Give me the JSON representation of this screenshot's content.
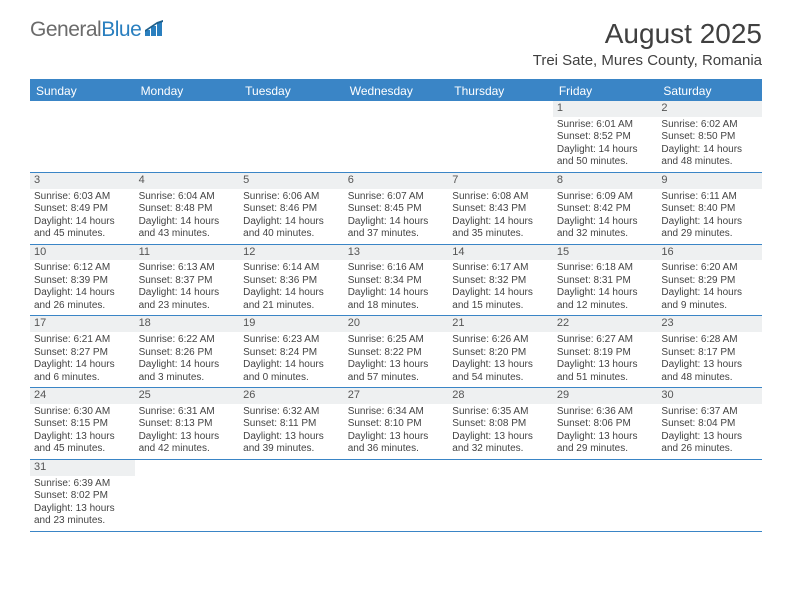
{
  "logo": {
    "text1": "General",
    "text2": "Blue"
  },
  "title": "August 2025",
  "location": "Trei Sate, Mures County, Romania",
  "colors": {
    "header_bg": "#3a85c6",
    "daynum_bg": "#eef0f1",
    "text": "#444444"
  },
  "day_headers": [
    "Sunday",
    "Monday",
    "Tuesday",
    "Wednesday",
    "Thursday",
    "Friday",
    "Saturday"
  ],
  "weeks": [
    [
      {
        "n": "",
        "sr": "",
        "ss": "",
        "dl1": "",
        "dl2": ""
      },
      {
        "n": "",
        "sr": "",
        "ss": "",
        "dl1": "",
        "dl2": ""
      },
      {
        "n": "",
        "sr": "",
        "ss": "",
        "dl1": "",
        "dl2": ""
      },
      {
        "n": "",
        "sr": "",
        "ss": "",
        "dl1": "",
        "dl2": ""
      },
      {
        "n": "",
        "sr": "",
        "ss": "",
        "dl1": "",
        "dl2": ""
      },
      {
        "n": "1",
        "sr": "Sunrise: 6:01 AM",
        "ss": "Sunset: 8:52 PM",
        "dl1": "Daylight: 14 hours",
        "dl2": "and 50 minutes."
      },
      {
        "n": "2",
        "sr": "Sunrise: 6:02 AM",
        "ss": "Sunset: 8:50 PM",
        "dl1": "Daylight: 14 hours",
        "dl2": "and 48 minutes."
      }
    ],
    [
      {
        "n": "3",
        "sr": "Sunrise: 6:03 AM",
        "ss": "Sunset: 8:49 PM",
        "dl1": "Daylight: 14 hours",
        "dl2": "and 45 minutes."
      },
      {
        "n": "4",
        "sr": "Sunrise: 6:04 AM",
        "ss": "Sunset: 8:48 PM",
        "dl1": "Daylight: 14 hours",
        "dl2": "and 43 minutes."
      },
      {
        "n": "5",
        "sr": "Sunrise: 6:06 AM",
        "ss": "Sunset: 8:46 PM",
        "dl1": "Daylight: 14 hours",
        "dl2": "and 40 minutes."
      },
      {
        "n": "6",
        "sr": "Sunrise: 6:07 AM",
        "ss": "Sunset: 8:45 PM",
        "dl1": "Daylight: 14 hours",
        "dl2": "and 37 minutes."
      },
      {
        "n": "7",
        "sr": "Sunrise: 6:08 AM",
        "ss": "Sunset: 8:43 PM",
        "dl1": "Daylight: 14 hours",
        "dl2": "and 35 minutes."
      },
      {
        "n": "8",
        "sr": "Sunrise: 6:09 AM",
        "ss": "Sunset: 8:42 PM",
        "dl1": "Daylight: 14 hours",
        "dl2": "and 32 minutes."
      },
      {
        "n": "9",
        "sr": "Sunrise: 6:11 AM",
        "ss": "Sunset: 8:40 PM",
        "dl1": "Daylight: 14 hours",
        "dl2": "and 29 minutes."
      }
    ],
    [
      {
        "n": "10",
        "sr": "Sunrise: 6:12 AM",
        "ss": "Sunset: 8:39 PM",
        "dl1": "Daylight: 14 hours",
        "dl2": "and 26 minutes."
      },
      {
        "n": "11",
        "sr": "Sunrise: 6:13 AM",
        "ss": "Sunset: 8:37 PM",
        "dl1": "Daylight: 14 hours",
        "dl2": "and 23 minutes."
      },
      {
        "n": "12",
        "sr": "Sunrise: 6:14 AM",
        "ss": "Sunset: 8:36 PM",
        "dl1": "Daylight: 14 hours",
        "dl2": "and 21 minutes."
      },
      {
        "n": "13",
        "sr": "Sunrise: 6:16 AM",
        "ss": "Sunset: 8:34 PM",
        "dl1": "Daylight: 14 hours",
        "dl2": "and 18 minutes."
      },
      {
        "n": "14",
        "sr": "Sunrise: 6:17 AM",
        "ss": "Sunset: 8:32 PM",
        "dl1": "Daylight: 14 hours",
        "dl2": "and 15 minutes."
      },
      {
        "n": "15",
        "sr": "Sunrise: 6:18 AM",
        "ss": "Sunset: 8:31 PM",
        "dl1": "Daylight: 14 hours",
        "dl2": "and 12 minutes."
      },
      {
        "n": "16",
        "sr": "Sunrise: 6:20 AM",
        "ss": "Sunset: 8:29 PM",
        "dl1": "Daylight: 14 hours",
        "dl2": "and 9 minutes."
      }
    ],
    [
      {
        "n": "17",
        "sr": "Sunrise: 6:21 AM",
        "ss": "Sunset: 8:27 PM",
        "dl1": "Daylight: 14 hours",
        "dl2": "and 6 minutes."
      },
      {
        "n": "18",
        "sr": "Sunrise: 6:22 AM",
        "ss": "Sunset: 8:26 PM",
        "dl1": "Daylight: 14 hours",
        "dl2": "and 3 minutes."
      },
      {
        "n": "19",
        "sr": "Sunrise: 6:23 AM",
        "ss": "Sunset: 8:24 PM",
        "dl1": "Daylight: 14 hours",
        "dl2": "and 0 minutes."
      },
      {
        "n": "20",
        "sr": "Sunrise: 6:25 AM",
        "ss": "Sunset: 8:22 PM",
        "dl1": "Daylight: 13 hours",
        "dl2": "and 57 minutes."
      },
      {
        "n": "21",
        "sr": "Sunrise: 6:26 AM",
        "ss": "Sunset: 8:20 PM",
        "dl1": "Daylight: 13 hours",
        "dl2": "and 54 minutes."
      },
      {
        "n": "22",
        "sr": "Sunrise: 6:27 AM",
        "ss": "Sunset: 8:19 PM",
        "dl1": "Daylight: 13 hours",
        "dl2": "and 51 minutes."
      },
      {
        "n": "23",
        "sr": "Sunrise: 6:28 AM",
        "ss": "Sunset: 8:17 PM",
        "dl1": "Daylight: 13 hours",
        "dl2": "and 48 minutes."
      }
    ],
    [
      {
        "n": "24",
        "sr": "Sunrise: 6:30 AM",
        "ss": "Sunset: 8:15 PM",
        "dl1": "Daylight: 13 hours",
        "dl2": "and 45 minutes."
      },
      {
        "n": "25",
        "sr": "Sunrise: 6:31 AM",
        "ss": "Sunset: 8:13 PM",
        "dl1": "Daylight: 13 hours",
        "dl2": "and 42 minutes."
      },
      {
        "n": "26",
        "sr": "Sunrise: 6:32 AM",
        "ss": "Sunset: 8:11 PM",
        "dl1": "Daylight: 13 hours",
        "dl2": "and 39 minutes."
      },
      {
        "n": "27",
        "sr": "Sunrise: 6:34 AM",
        "ss": "Sunset: 8:10 PM",
        "dl1": "Daylight: 13 hours",
        "dl2": "and 36 minutes."
      },
      {
        "n": "28",
        "sr": "Sunrise: 6:35 AM",
        "ss": "Sunset: 8:08 PM",
        "dl1": "Daylight: 13 hours",
        "dl2": "and 32 minutes."
      },
      {
        "n": "29",
        "sr": "Sunrise: 6:36 AM",
        "ss": "Sunset: 8:06 PM",
        "dl1": "Daylight: 13 hours",
        "dl2": "and 29 minutes."
      },
      {
        "n": "30",
        "sr": "Sunrise: 6:37 AM",
        "ss": "Sunset: 8:04 PM",
        "dl1": "Daylight: 13 hours",
        "dl2": "and 26 minutes."
      }
    ],
    [
      {
        "n": "31",
        "sr": "Sunrise: 6:39 AM",
        "ss": "Sunset: 8:02 PM",
        "dl1": "Daylight: 13 hours",
        "dl2": "and 23 minutes."
      },
      {
        "n": "",
        "sr": "",
        "ss": "",
        "dl1": "",
        "dl2": ""
      },
      {
        "n": "",
        "sr": "",
        "ss": "",
        "dl1": "",
        "dl2": ""
      },
      {
        "n": "",
        "sr": "",
        "ss": "",
        "dl1": "",
        "dl2": ""
      },
      {
        "n": "",
        "sr": "",
        "ss": "",
        "dl1": "",
        "dl2": ""
      },
      {
        "n": "",
        "sr": "",
        "ss": "",
        "dl1": "",
        "dl2": ""
      },
      {
        "n": "",
        "sr": "",
        "ss": "",
        "dl1": "",
        "dl2": ""
      }
    ]
  ]
}
